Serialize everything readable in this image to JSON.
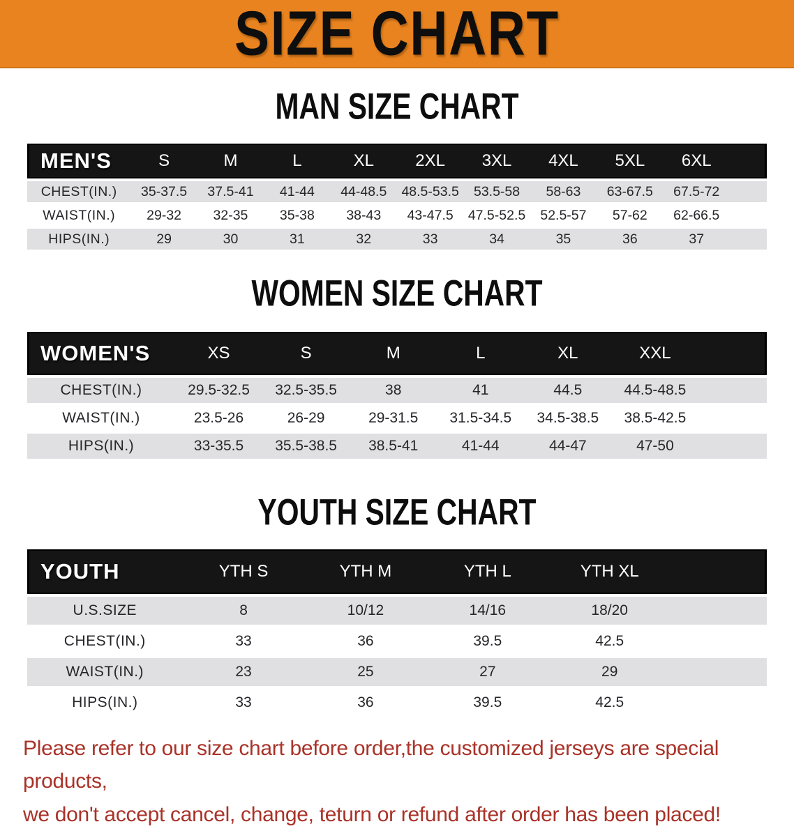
{
  "banner": {
    "title": "SIZE CHART"
  },
  "colors": {
    "accent_orange": "#E8831F",
    "table_header_black": "#151515",
    "row_stripe_gray": "#E0E0E2",
    "disclaimer_red": "#A93228"
  },
  "sections": [
    {
      "heading": "MAN SIZE CHART",
      "table": {
        "label": "MEN'S",
        "columns": [
          "S",
          "M",
          "L",
          "XL",
          "2XL",
          "3XL",
          "4XL",
          "5XL",
          "6XL"
        ],
        "rows": [
          {
            "label": "CHEST(IN.)",
            "values": [
              "35-37.5",
              "37.5-41",
              "41-44",
              "44-48.5",
              "48.5-53.5",
              "53.5-58",
              "58-63",
              "63-67.5",
              "67.5-72"
            ]
          },
          {
            "label": "WAIST(IN.)",
            "values": [
              "29-32",
              "32-35",
              "35-38",
              "38-43",
              "43-47.5",
              "47.5-52.5",
              "52.5-57",
              "57-62",
              "62-66.5"
            ]
          },
          {
            "label": "HIPS(IN.)",
            "values": [
              "29",
              "30",
              "31",
              "32",
              "33",
              "34",
              "35",
              "36",
              "37"
            ]
          }
        ]
      }
    },
    {
      "heading": "WOMEN SIZE CHART",
      "table": {
        "label": "WOMEN'S",
        "columns": [
          "XS",
          "S",
          "M",
          "L",
          "XL",
          "XXL"
        ],
        "rows": [
          {
            "label": "CHEST(IN.)",
            "values": [
              "29.5-32.5",
              "32.5-35.5",
              "38",
              "41",
              "44.5",
              "44.5-48.5"
            ]
          },
          {
            "label": "WAIST(IN.)",
            "values": [
              "23.5-26",
              "26-29",
              "29-31.5",
              "31.5-34.5",
              "34.5-38.5",
              "38.5-42.5"
            ]
          },
          {
            "label": "HIPS(IN.)",
            "values": [
              "33-35.5",
              "35.5-38.5",
              "38.5-41",
              "41-44",
              "44-47",
              "47-50"
            ]
          }
        ]
      }
    },
    {
      "heading": "YOUTH SIZE CHART",
      "table": {
        "label": "YOUTH",
        "columns": [
          "YTH S",
          "YTH M",
          "YTH L",
          "YTH XL"
        ],
        "rows": [
          {
            "label": "U.S.SIZE",
            "values": [
              "8",
              "10/12",
              "14/16",
              "18/20"
            ]
          },
          {
            "label": "CHEST(IN.)",
            "values": [
              "33",
              "36",
              "39.5",
              "42.5"
            ]
          },
          {
            "label": "WAIST(IN.)",
            "values": [
              "23",
              "25",
              "27",
              "29"
            ]
          },
          {
            "label": "HIPS(IN.)",
            "values": [
              "33",
              "36",
              "39.5",
              "42.5"
            ]
          }
        ]
      }
    }
  ],
  "disclaimer": {
    "line1": "Please refer to our size chart before order,the customized jerseys are special products,",
    "line2": "we don't accept cancel, change, teturn or refund after order has been placed!"
  }
}
